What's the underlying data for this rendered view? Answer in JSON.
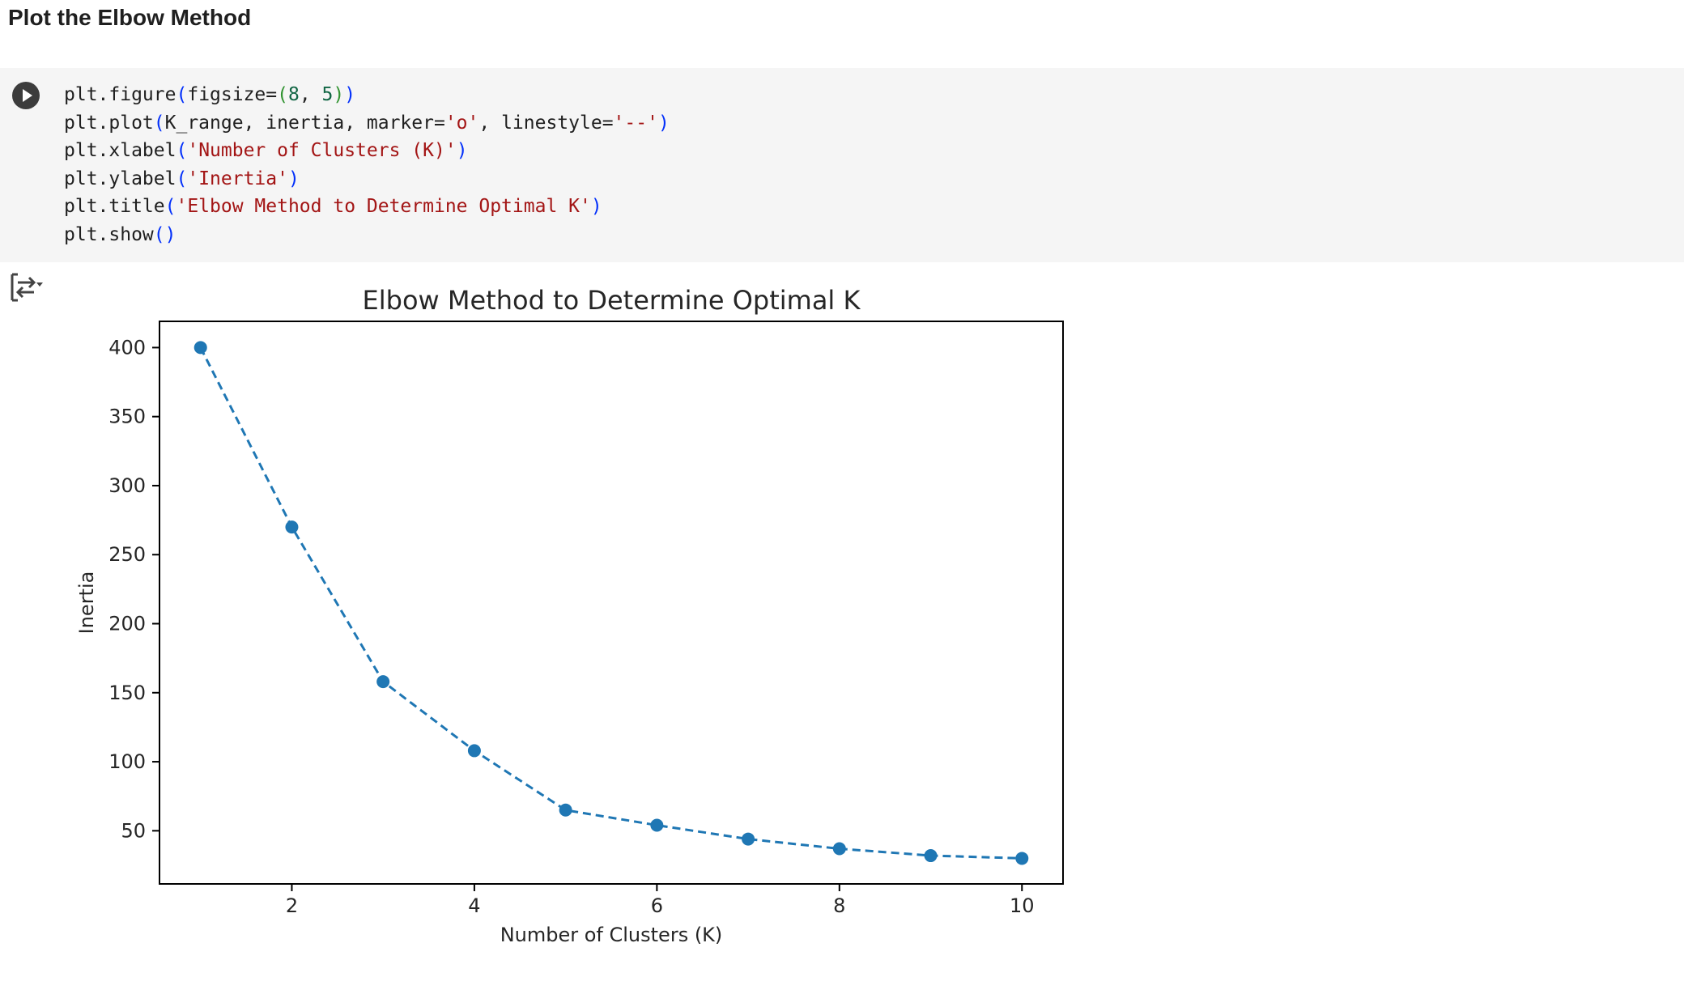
{
  "section": {
    "heading": "Plot the Elbow Method"
  },
  "code_cell": {
    "run_icon": "play-circle-icon",
    "lines": [
      "plt.figure(figsize=(8, 5))",
      "plt.plot(K_range, inertia, marker='o', linestyle='--')",
      "plt.xlabel('Number of Clusters (K)')",
      "plt.ylabel('Inertia')",
      "plt.title('Elbow Method to Determine Optimal K')",
      "plt.show()"
    ]
  },
  "output": {
    "icon": "output-options-icon"
  },
  "colors": {
    "series": "#1f77b4",
    "cell_bg": "#f5f5f5",
    "string": "#a31515",
    "number": "#116644",
    "bracket_outer": "#0431fa",
    "bracket_inner": "#319331"
  },
  "chart_data": {
    "type": "line",
    "title": "Elbow Method to Determine Optimal K",
    "xlabel": "Number of Clusters (K)",
    "ylabel": "Inertia",
    "x": [
      1,
      2,
      3,
      4,
      5,
      6,
      7,
      8,
      9,
      10
    ],
    "series": [
      {
        "values": [
          400,
          270,
          158,
          108,
          65,
          54,
          44,
          37,
          32,
          30
        ],
        "marker": "o",
        "linestyle": "--"
      }
    ],
    "xticks": [
      "2",
      "4",
      "6",
      "8",
      "10"
    ],
    "yticks": [
      "50",
      "100",
      "150",
      "200",
      "250",
      "300",
      "350",
      "400"
    ],
    "xlim": [
      0.55,
      10.45
    ],
    "ylim": [
      11.5,
      419
    ],
    "grid": false
  }
}
